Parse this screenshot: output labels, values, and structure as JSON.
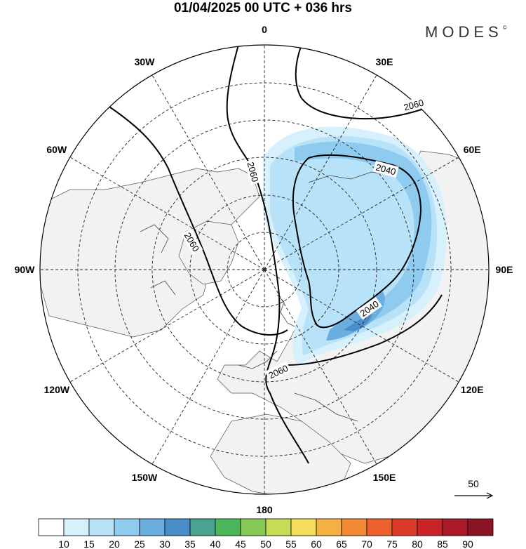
{
  "title": "01/04/2025  00 UTC  + 036 hrs",
  "logo": {
    "text": "MODES",
    "mark": "©"
  },
  "longitude_labels": [
    {
      "text": "180",
      "lon": 180
    },
    {
      "text": "150E",
      "lon": 150
    },
    {
      "text": "120E",
      "lon": 120
    },
    {
      "text": "90E",
      "lon": 90
    },
    {
      "text": "60E",
      "lon": 60
    },
    {
      "text": "30E",
      "lon": 30
    },
    {
      "text": "0",
      "lon": 0
    },
    {
      "text": "30W",
      "lon": -30
    },
    {
      "text": "60W",
      "lon": -60
    },
    {
      "text": "90W",
      "lon": -90
    },
    {
      "text": "120W",
      "lon": -120
    },
    {
      "text": "150W",
      "lon": -150
    }
  ],
  "contour_labels": [
    "2060",
    "2060",
    "2060",
    "2040",
    "2040",
    "2060"
  ],
  "wind_reference": {
    "value": "50"
  },
  "colorbar": {
    "labels": [
      "10",
      "15",
      "20",
      "25",
      "30",
      "35",
      "40",
      "45",
      "50",
      "55",
      "60",
      "65",
      "70",
      "75",
      "80",
      "85",
      "90"
    ],
    "colors": [
      "#ffffff",
      "#d6f0fc",
      "#b8e2f8",
      "#8fcbef",
      "#6aaee0",
      "#4a8ec9",
      "#4aa38e",
      "#4cb75a",
      "#87c957",
      "#c6dc56",
      "#f6de5c",
      "#f5b042",
      "#f28a33",
      "#ec612e",
      "#de3a2c",
      "#c92328",
      "#a8192a",
      "#8a1423"
    ]
  }
}
